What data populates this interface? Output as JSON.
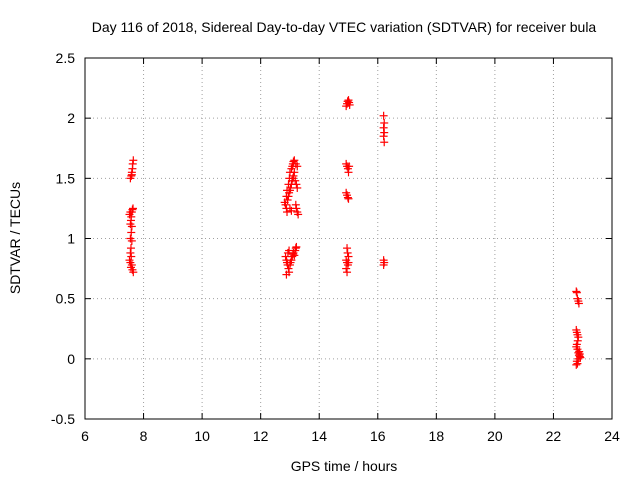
{
  "chart_data": {
    "type": "scatter",
    "title": "Day 116 of 2018, Sidereal Day-to-day VTEC variation (SDTVAR) for receiver bula",
    "xlabel": "GPS time / hours",
    "ylabel": "SDTVAR / TECUs",
    "xlim": [
      6,
      24
    ],
    "ylim": [
      -0.5,
      2.5
    ],
    "xticks": [
      "6",
      "8",
      "10",
      "12",
      "14",
      "16",
      "18",
      "20",
      "22",
      "24"
    ],
    "yticks": [
      "-0.5",
      "0",
      "0.5",
      "1",
      "1.5",
      "2",
      "2.5"
    ],
    "grid": true,
    "legend": "none",
    "marker": "plus",
    "color": "#ff0000",
    "series": [
      {
        "points": [
          [
            7.55,
            1.5
          ],
          [
            7.58,
            1.52
          ],
          [
            7.6,
            1.55
          ],
          [
            7.62,
            1.58
          ],
          [
            7.63,
            1.62
          ],
          [
            7.65,
            1.65
          ],
          [
            7.6,
            1.53
          ],
          [
            7.52,
            1.2
          ],
          [
            7.55,
            1.22
          ],
          [
            7.58,
            1.18
          ],
          [
            7.6,
            1.22
          ],
          [
            7.62,
            1.24
          ],
          [
            7.64,
            1.25
          ],
          [
            7.57,
            1.15
          ],
          [
            7.55,
            1.12
          ],
          [
            7.6,
            1.1
          ],
          [
            7.58,
            1.05
          ],
          [
            7.55,
            1.0
          ],
          [
            7.6,
            0.98
          ],
          [
            7.57,
            0.92
          ],
          [
            7.55,
            0.88
          ],
          [
            7.58,
            0.85
          ],
          [
            7.52,
            0.82
          ],
          [
            7.55,
            0.8
          ],
          [
            7.6,
            0.78
          ],
          [
            7.57,
            0.76
          ],
          [
            7.62,
            0.74
          ],
          [
            7.65,
            0.72
          ],
          [
            12.82,
            1.3
          ],
          [
            12.85,
            1.28
          ],
          [
            12.88,
            1.25
          ],
          [
            12.9,
            1.22
          ],
          [
            12.92,
            1.32
          ],
          [
            12.95,
            1.35
          ],
          [
            12.97,
            1.38
          ],
          [
            13.0,
            1.4
          ],
          [
            13.02,
            1.42
          ],
          [
            13.05,
            1.45
          ],
          [
            13.07,
            1.48
          ],
          [
            13.1,
            1.5
          ],
          [
            13.12,
            1.52
          ],
          [
            13.15,
            1.55
          ],
          [
            13.05,
            1.58
          ],
          [
            13.08,
            1.6
          ],
          [
            13.1,
            1.62
          ],
          [
            13.12,
            1.64
          ],
          [
            13.15,
            1.65
          ],
          [
            13.2,
            1.62
          ],
          [
            13.25,
            1.6
          ],
          [
            13.0,
            1.55
          ],
          [
            12.98,
            1.5
          ],
          [
            12.95,
            1.45
          ],
          [
            13.18,
            1.48
          ],
          [
            13.22,
            1.45
          ],
          [
            13.25,
            1.42
          ],
          [
            13.2,
            1.28
          ],
          [
            13.22,
            1.25
          ],
          [
            13.25,
            1.22
          ],
          [
            13.28,
            1.2
          ],
          [
            13.0,
            1.25
          ],
          [
            13.05,
            1.23
          ],
          [
            12.88,
            1.35
          ],
          [
            12.9,
            1.4
          ],
          [
            12.85,
            0.85
          ],
          [
            12.88,
            0.82
          ],
          [
            12.9,
            0.8
          ],
          [
            12.92,
            0.78
          ],
          [
            12.95,
            0.75
          ],
          [
            12.97,
            0.72
          ],
          [
            12.88,
            0.7
          ],
          [
            13.0,
            0.78
          ],
          [
            13.02,
            0.8
          ],
          [
            13.05,
            0.82
          ],
          [
            13.08,
            0.85
          ],
          [
            13.1,
            0.87
          ],
          [
            13.12,
            0.88
          ],
          [
            13.15,
            0.86
          ],
          [
            13.18,
            0.9
          ],
          [
            13.2,
            0.92
          ],
          [
            13.22,
            0.93
          ],
          [
            12.93,
            0.88
          ],
          [
            12.97,
            0.9
          ],
          [
            14.92,
            2.1
          ],
          [
            14.95,
            2.12
          ],
          [
            14.97,
            2.14
          ],
          [
            15.0,
            2.15
          ],
          [
            15.02,
            2.13
          ],
          [
            15.04,
            2.11
          ],
          [
            14.92,
            1.62
          ],
          [
            14.95,
            1.6
          ],
          [
            14.98,
            1.58
          ],
          [
            15.0,
            1.55
          ],
          [
            15.02,
            1.6
          ],
          [
            14.92,
            1.38
          ],
          [
            14.95,
            1.36
          ],
          [
            14.98,
            1.34
          ],
          [
            15.0,
            1.33
          ],
          [
            14.95,
            0.92
          ],
          [
            14.97,
            0.88
          ],
          [
            15.0,
            0.85
          ],
          [
            14.92,
            0.82
          ],
          [
            14.95,
            0.8
          ],
          [
            14.98,
            0.78
          ],
          [
            14.92,
            0.75
          ],
          [
            14.95,
            0.72
          ],
          [
            15.0,
            0.8
          ],
          [
            16.2,
            2.02
          ],
          [
            16.22,
            1.96
          ],
          [
            16.2,
            1.92
          ],
          [
            16.22,
            1.88
          ],
          [
            16.2,
            1.85
          ],
          [
            16.22,
            1.8
          ],
          [
            16.2,
            0.82
          ],
          [
            16.22,
            0.8
          ],
          [
            16.2,
            0.78
          ],
          [
            22.78,
            0.56
          ],
          [
            22.8,
            0.55
          ],
          [
            22.82,
            0.5
          ],
          [
            22.85,
            0.48
          ],
          [
            22.87,
            0.46
          ],
          [
            22.78,
            0.24
          ],
          [
            22.8,
            0.22
          ],
          [
            22.82,
            0.2
          ],
          [
            22.85,
            0.18
          ],
          [
            22.83,
            0.15
          ],
          [
            22.8,
            0.12
          ],
          [
            22.78,
            0.1
          ],
          [
            22.82,
            0.08
          ],
          [
            22.85,
            0.05
          ],
          [
            22.87,
            0.03
          ],
          [
            22.9,
            0.02
          ],
          [
            22.92,
            0.01
          ],
          [
            22.85,
            0.0
          ],
          [
            22.8,
            -0.02
          ],
          [
            22.78,
            -0.05
          ],
          [
            22.82,
            -0.04
          ],
          [
            22.88,
            0.06
          ],
          [
            22.9,
            0.04
          ]
        ]
      }
    ]
  }
}
